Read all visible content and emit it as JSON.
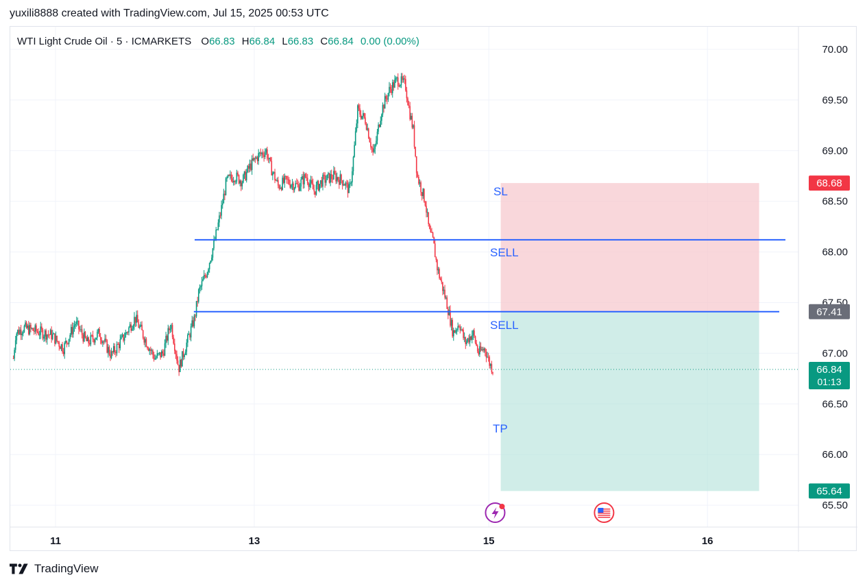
{
  "header": {
    "credit": "yuxili8888 created with TradingView.com, Jul 15, 2025 00:53 UTC"
  },
  "legend": {
    "symbol": "WTI Light Crude Oil · 5 · ICMARKETS",
    "open_label": "O",
    "open": "66.83",
    "high_label": "H",
    "high": "66.84",
    "low_label": "L",
    "low": "66.83",
    "close_label": "C",
    "close": "66.84",
    "change": "0.00 (0.00%)"
  },
  "colors": {
    "up": "#089981",
    "down": "#f23645",
    "grid": "#f0f3fa",
    "line": "#2962ff",
    "stop_zone": "#f7c9cf",
    "target_zone": "#b7e4dc",
    "sl_badge": "#f23645",
    "entry_badge": "#6a6d78",
    "tp_badge": "#089981",
    "current_badge": "#089981"
  },
  "chart_data": {
    "type": "candlestick",
    "ylim": [
      65.4,
      70.25
    ],
    "y_ticks": [
      "65.50",
      "66.00",
      "66.50",
      "67.00",
      "67.50",
      "68.00",
      "68.50",
      "69.00",
      "69.50",
      "70.00"
    ],
    "x_ticks": [
      {
        "label": "11",
        "t": 0.8
      },
      {
        "label": "13",
        "t": 3.3
      },
      {
        "label": "15",
        "t": 6.25
      },
      {
        "label": "16",
        "t": 9.0
      }
    ],
    "x_range": [
      0.27,
      10.4
    ],
    "price_path": [
      [
        0.27,
        66.95
      ],
      [
        0.3,
        67.2
      ],
      [
        0.4,
        67.25
      ],
      [
        0.55,
        67.22
      ],
      [
        0.75,
        67.18
      ],
      [
        0.9,
        67.05
      ],
      [
        1.05,
        67.3
      ],
      [
        1.2,
        67.1
      ],
      [
        1.35,
        67.2
      ],
      [
        1.5,
        66.98
      ],
      [
        1.65,
        67.15
      ],
      [
        1.8,
        67.35
      ],
      [
        1.95,
        67.1
      ],
      [
        2.05,
        66.95
      ],
      [
        2.15,
        67.0
      ],
      [
        2.25,
        67.3
      ],
      [
        2.35,
        66.85
      ],
      [
        2.45,
        67.1
      ],
      [
        2.55,
        67.35
      ],
      [
        2.6,
        67.6
      ],
      [
        2.7,
        67.8
      ],
      [
        2.8,
        68.1
      ],
      [
        2.88,
        68.4
      ],
      [
        2.95,
        68.7
      ],
      [
        3.05,
        68.75
      ],
      [
        3.15,
        68.7
      ],
      [
        3.25,
        68.85
      ],
      [
        3.35,
        68.95
      ],
      [
        3.45,
        69.0
      ],
      [
        3.5,
        68.85
      ],
      [
        3.6,
        68.65
      ],
      [
        3.7,
        68.7
      ],
      [
        3.85,
        68.65
      ],
      [
        3.95,
        68.75
      ],
      [
        4.05,
        68.6
      ],
      [
        4.15,
        68.7
      ],
      [
        4.3,
        68.75
      ],
      [
        4.42,
        68.7
      ],
      [
        4.5,
        68.6
      ],
      [
        4.55,
        68.95
      ],
      [
        4.6,
        69.4
      ],
      [
        4.7,
        69.3
      ],
      [
        4.8,
        68.95
      ],
      [
        4.9,
        69.4
      ],
      [
        5.0,
        69.6
      ],
      [
        5.1,
        69.7
      ],
      [
        5.2,
        69.65
      ],
      [
        5.25,
        69.4
      ],
      [
        5.3,
        69.2
      ],
      [
        5.35,
        68.75
      ],
      [
        5.45,
        68.5
      ],
      [
        5.5,
        68.2
      ],
      [
        5.55,
        68.1
      ],
      [
        5.6,
        67.85
      ],
      [
        5.65,
        67.7
      ],
      [
        5.72,
        67.5
      ],
      [
        5.8,
        67.2
      ],
      [
        5.88,
        67.3
      ],
      [
        5.95,
        67.1
      ],
      [
        6.05,
        67.2
      ],
      [
        6.12,
        67.0
      ],
      [
        6.2,
        67.05
      ],
      [
        6.26,
        66.9
      ],
      [
        6.3,
        66.84
      ]
    ],
    "current": {
      "price": 66.84,
      "label": "66.84",
      "countdown": "01:13"
    },
    "levels": {
      "sell_1": {
        "price": 68.12,
        "label": "SELL"
      },
      "sell_2": {
        "price": 67.41,
        "label": "SELL"
      }
    },
    "position": {
      "t_start": 6.4,
      "t_end": 9.65,
      "stop_loss": {
        "price": 68.68,
        "label": "SL",
        "badge": "68.68"
      },
      "entry": {
        "price": 67.41,
        "badge": "67.41"
      },
      "take_profit": {
        "price": 65.64,
        "label": "TP",
        "badge": "65.64"
      }
    }
  },
  "events": [
    {
      "icon": "lightning-event-icon",
      "t": 6.33
    },
    {
      "icon": "us-flag-event-icon",
      "t": 7.7
    }
  ],
  "footer": {
    "brand": "TradingView"
  }
}
